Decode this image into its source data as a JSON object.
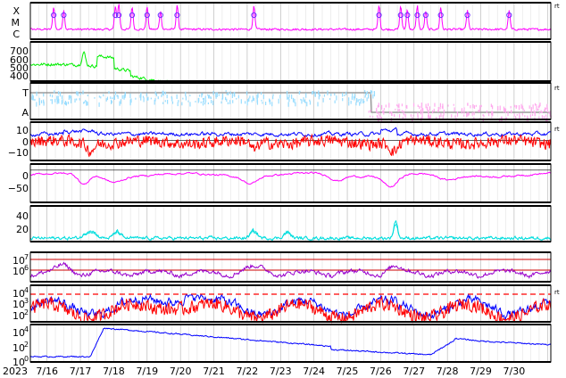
{
  "chart_data": {
    "type": "line",
    "year_label": "2023",
    "x_ticks": [
      "7/16",
      "7/17",
      "7/18",
      "7/19",
      "7/20",
      "7/21",
      "7/22",
      "7/23",
      "7/24",
      "7/25",
      "7/26",
      "7/27",
      "7/28",
      "7/29",
      "7/30"
    ],
    "side_marker": "rt",
    "colors": {
      "magenta": "#ff00ff",
      "green": "#00ee00",
      "lightblue": "#99ddff",
      "pink": "#ffaaee",
      "blue": "#0000ff",
      "red": "#ff0000",
      "purple": "#9900cc",
      "cyan": "#00dddd",
      "gray": "#888888",
      "circle": "#6633ff"
    },
    "panels": [
      {
        "id": "flare-class",
        "ticks": [
          "X",
          "M",
          "C"
        ],
        "series": [
          {
            "color": "magenta",
            "base": 0.25,
            "noise": 0.06
          }
        ],
        "flare_markers": [
          0.7,
          1.0,
          2.55,
          2.65,
          3.05,
          3.5,
          3.9,
          4.4,
          6.7,
          10.45,
          11.1,
          11.3,
          11.6,
          11.85,
          12.3,
          13.1,
          14.35
        ]
      },
      {
        "id": "solar-wind-speed",
        "ticks": [
          "700",
          "600",
          "500",
          "400"
        ],
        "ylim": [
          330,
          780
        ],
        "series": [
          {
            "color": "green"
          }
        ]
      },
      {
        "id": "sector",
        "ticks": [
          "T",
          "A"
        ]
      },
      {
        "id": "imf",
        "ticks": [
          "10",
          "0",
          "−10"
        ],
        "ylim": [
          -22,
          20
        ]
      },
      {
        "id": "dst",
        "ticks": [
          "0",
          "−50"
        ],
        "ylim": [
          -80,
          15
        ]
      },
      {
        "id": "pressure",
        "ticks": [
          "40",
          "20"
        ],
        "ylim": [
          0,
          52
        ]
      },
      {
        "id": "proton-flux",
        "ticks": [
          {
            "base": "10",
            "exp": "7"
          },
          {
            "base": "10",
            "exp": "6"
          }
        ]
      },
      {
        "id": "electron-flux",
        "ticks": [
          {
            "base": "10",
            "exp": "4"
          },
          {
            "base": "10",
            "exp": "3"
          },
          {
            "base": "10",
            "exp": "2"
          }
        ],
        "threshold_label": "10^4"
      },
      {
        "id": "neutron",
        "ticks": [
          {
            "base": "10",
            "exp": "4"
          },
          {
            "base": "10",
            "exp": "2"
          },
          {
            "base": "10",
            "exp": "0"
          }
        ]
      }
    ]
  }
}
